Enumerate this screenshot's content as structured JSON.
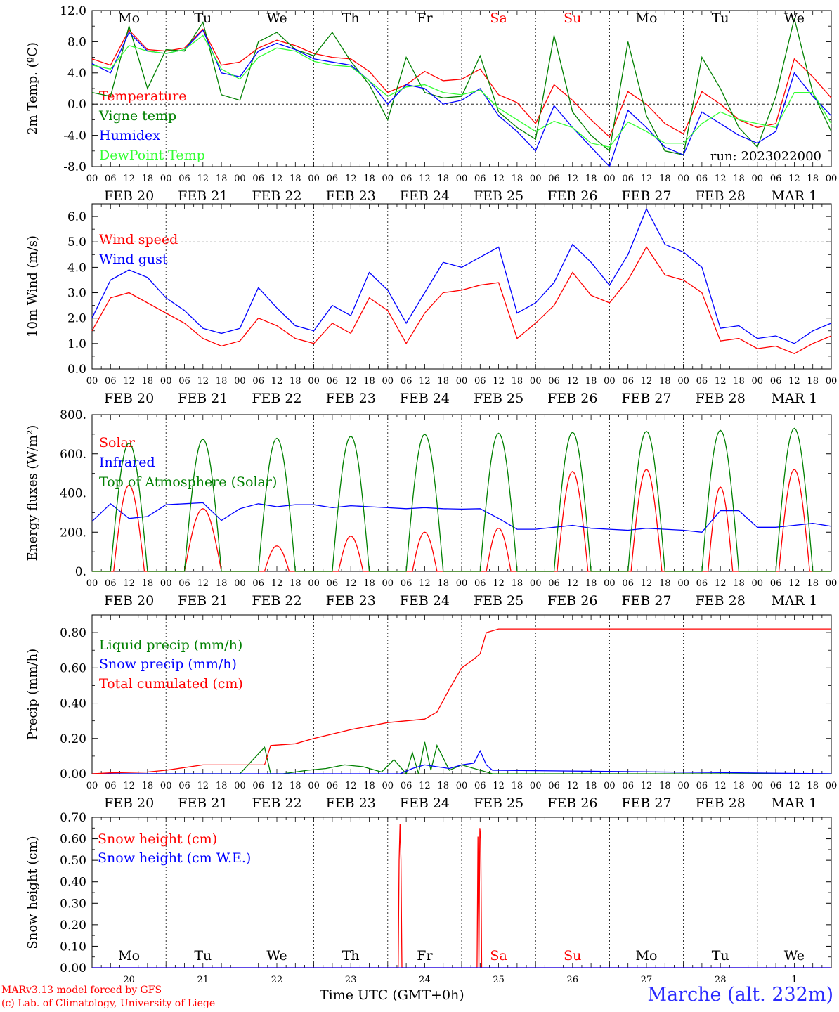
{
  "header": {
    "run_label": "run: 2023022000"
  },
  "footer": {
    "credit_line1": "MARv3.13 model forced by GFS",
    "credit_line2": "(c) Lab. of Climatology, University of Liege",
    "xaxis_title": "Time UTC (GMT+0h)",
    "station": "Marche (alt. 232m)"
  },
  "colors": {
    "red": "#ff0000",
    "green": "#008000",
    "blue": "#0000ff",
    "lightgreen": "#33ff33",
    "text": "#000000",
    "weekend": "#ff0000"
  },
  "days": [
    {
      "date": "FEB 20",
      "dow": "Mo",
      "num": "20",
      "weekend": false
    },
    {
      "date": "FEB 21",
      "dow": "Tu",
      "num": "21",
      "weekend": false
    },
    {
      "date": "FEB 22",
      "dow": "We",
      "num": "22",
      "weekend": false
    },
    {
      "date": "FEB 23",
      "dow": "Th",
      "num": "23",
      "weekend": false
    },
    {
      "date": "FEB 24",
      "dow": "Fr",
      "num": "24",
      "weekend": false
    },
    {
      "date": "FEB 25",
      "dow": "Sa",
      "num": "25",
      "weekend": true
    },
    {
      "date": "FEB 26",
      "dow": "Su",
      "num": "26",
      "weekend": true
    },
    {
      "date": "FEB 27",
      "dow": "Mo",
      "num": "27",
      "weekend": false
    },
    {
      "date": "FEB 28",
      "dow": "Tu",
      "num": "28",
      "weekend": false
    },
    {
      "date": "MAR 1",
      "dow": "We",
      "num": "1",
      "weekend": false
    }
  ],
  "hour_ticks": [
    "00",
    "06",
    "12",
    "18"
  ],
  "chart_data": [
    {
      "type": "line",
      "ylabel": "2m Temp. (ºC)",
      "ylim": [
        -8,
        12
      ],
      "yticks": [
        "-8.0",
        "-4.0",
        "0.0",
        "4.0",
        "8.0",
        "12.0"
      ],
      "ytick_values": [
        -8,
        -4,
        0,
        4,
        8,
        12
      ],
      "x_unit": "hours since FEB 20 00 UTC",
      "ref_line": 0,
      "series": [
        {
          "name": "Temperature",
          "color": "#ff0000",
          "x": [
            0,
            6,
            12,
            18,
            24,
            30,
            36,
            42,
            48,
            54,
            60,
            66,
            72,
            78,
            84,
            90,
            96,
            102,
            108,
            114,
            120,
            126,
            132,
            138,
            144,
            150,
            156,
            162,
            168,
            174,
            180,
            186,
            192,
            198,
            204,
            210,
            216,
            222,
            228,
            234,
            240
          ],
          "y": [
            5.8,
            5.0,
            9.5,
            7.0,
            6.8,
            7.2,
            9.6,
            5.0,
            5.4,
            7.2,
            8.2,
            7.5,
            6.5,
            6.0,
            5.8,
            4.2,
            1.5,
            2.5,
            4.2,
            3.0,
            3.2,
            4.5,
            1.2,
            0.2,
            -2.5,
            2.5,
            0.5,
            -2.0,
            -4.2,
            1.6,
            0.0,
            -2.5,
            -3.8,
            1.6,
            0.0,
            -2.0,
            -3.0,
            -2.5,
            5.8,
            3.5,
            0.8
          ]
        },
        {
          "name": "Vigne temp",
          "color": "#008000",
          "x": [
            0,
            6,
            12,
            18,
            24,
            30,
            36,
            42,
            48,
            54,
            60,
            66,
            72,
            78,
            84,
            90,
            96,
            102,
            108,
            114,
            120,
            126,
            132,
            138,
            144,
            150,
            156,
            162,
            168,
            174,
            180,
            186,
            192,
            198,
            204,
            210,
            216,
            222,
            228,
            234,
            240
          ],
          "y": [
            1.5,
            1.0,
            10.0,
            2.0,
            7.0,
            6.8,
            10.5,
            1.2,
            0.5,
            8.0,
            9.2,
            7.0,
            6.2,
            9.2,
            5.5,
            2.5,
            -2.0,
            6.0,
            1.5,
            0.8,
            1.0,
            6.2,
            -1.0,
            -3.0,
            -4.5,
            8.8,
            -1.0,
            -4.0,
            -6.0,
            8.0,
            -1.5,
            -6.0,
            -6.5,
            6.0,
            2.0,
            -3.0,
            -5.5,
            1.0,
            11.0,
            1.5,
            -3.5
          ]
        },
        {
          "name": "Humidex",
          "color": "#0000ff",
          "x": [
            0,
            6,
            12,
            18,
            24,
            30,
            36,
            42,
            48,
            54,
            60,
            66,
            72,
            78,
            84,
            90,
            96,
            102,
            108,
            114,
            120,
            126,
            132,
            138,
            144,
            150,
            156,
            162,
            168,
            174,
            180,
            186,
            192,
            198,
            204,
            210,
            216,
            222,
            228,
            234,
            240
          ],
          "y": [
            5.2,
            4.0,
            9.2,
            6.8,
            6.5,
            7.0,
            9.5,
            4.0,
            3.5,
            6.8,
            7.8,
            7.0,
            5.8,
            5.4,
            5.0,
            3.0,
            0.0,
            2.5,
            2.0,
            0.0,
            0.5,
            2.0,
            -1.5,
            -3.5,
            -6.0,
            -0.2,
            -3.0,
            -5.5,
            -8.0,
            -0.8,
            -3.0,
            -5.5,
            -6.5,
            -1.0,
            -2.5,
            -4.0,
            -5.0,
            -3.5,
            4.0,
            1.0,
            -1.5
          ]
        },
        {
          "name": "DewPoint Temp",
          "color": "#33ff33",
          "x": [
            0,
            6,
            12,
            18,
            24,
            30,
            36,
            42,
            48,
            54,
            60,
            66,
            72,
            78,
            84,
            90,
            96,
            102,
            108,
            114,
            120,
            126,
            132,
            138,
            144,
            150,
            156,
            162,
            168,
            174,
            180,
            186,
            192,
            198,
            204,
            210,
            216,
            222,
            228,
            234,
            240
          ],
          "y": [
            5.0,
            4.5,
            7.5,
            6.8,
            6.5,
            7.0,
            8.8,
            4.5,
            3.2,
            6.0,
            7.2,
            6.8,
            5.5,
            5.0,
            4.8,
            3.0,
            1.0,
            2.2,
            2.5,
            1.5,
            1.2,
            1.8,
            -0.5,
            -2.0,
            -3.5,
            -2.2,
            -3.0,
            -5.0,
            -5.5,
            -2.3,
            -3.5,
            -5.0,
            -5.0,
            -2.5,
            -1.0,
            -2.0,
            -2.5,
            -3.0,
            1.5,
            1.5,
            -2.5
          ]
        }
      ]
    },
    {
      "type": "line",
      "ylabel": "10m Wind (m/s)",
      "ylim": [
        0,
        6.5
      ],
      "yticks": [
        "0.0",
        "1.0",
        "2.0",
        "3.0",
        "4.0",
        "5.0",
        "6.0"
      ],
      "ytick_values": [
        0,
        1,
        2,
        3,
        4,
        5,
        6
      ],
      "x_unit": "hours since FEB 20 00 UTC",
      "ref_line": 5,
      "series": [
        {
          "name": "Wind speed",
          "color": "#ff0000",
          "x": [
            0,
            6,
            12,
            18,
            24,
            30,
            36,
            42,
            48,
            54,
            60,
            66,
            72,
            78,
            84,
            90,
            96,
            102,
            108,
            114,
            120,
            126,
            132,
            138,
            144,
            150,
            156,
            162,
            168,
            174,
            180,
            186,
            192,
            198,
            204,
            210,
            216,
            222,
            228,
            234,
            240
          ],
          "y": [
            1.5,
            2.8,
            3.0,
            2.6,
            2.2,
            1.8,
            1.2,
            0.9,
            1.1,
            2.0,
            1.7,
            1.2,
            1.0,
            1.8,
            1.4,
            2.8,
            2.3,
            1.0,
            2.2,
            3.0,
            3.1,
            3.3,
            3.4,
            1.2,
            1.8,
            2.5,
            3.8,
            2.9,
            2.6,
            3.5,
            4.8,
            3.7,
            3.5,
            3.0,
            1.1,
            1.2,
            0.8,
            0.9,
            0.6,
            1.0,
            1.3
          ]
        },
        {
          "name": "Wind gust",
          "color": "#0000ff",
          "x": [
            0,
            6,
            12,
            18,
            24,
            30,
            36,
            42,
            48,
            54,
            60,
            66,
            72,
            78,
            84,
            90,
            96,
            102,
            108,
            114,
            120,
            126,
            132,
            138,
            144,
            150,
            156,
            162,
            168,
            174,
            180,
            186,
            192,
            198,
            204,
            210,
            216,
            222,
            228,
            234,
            240
          ],
          "y": [
            2.0,
            3.5,
            3.9,
            3.6,
            2.8,
            2.3,
            1.6,
            1.4,
            1.6,
            3.2,
            2.4,
            1.7,
            1.5,
            2.5,
            2.1,
            3.8,
            3.1,
            1.8,
            3.0,
            4.2,
            4.0,
            4.4,
            4.8,
            2.2,
            2.6,
            3.4,
            4.9,
            4.2,
            3.3,
            4.5,
            6.3,
            4.9,
            4.6,
            4.0,
            1.6,
            1.7,
            1.2,
            1.3,
            1.0,
            1.5,
            1.8
          ]
        }
      ]
    },
    {
      "type": "line",
      "ylabel": "Energy fluxes (W/m²)",
      "ylim": [
        0,
        800
      ],
      "yticks": [
        "0.",
        "200.",
        "400.",
        "600.",
        "800."
      ],
      "ytick_values": [
        0,
        200,
        400,
        600,
        800
      ],
      "x_unit": "hours since FEB 20 00 UTC",
      "series": [
        {
          "name": "Solar",
          "color": "#ff0000",
          "peaks_x": [
            12,
            36,
            60,
            84,
            108,
            132,
            156,
            180,
            204,
            228
          ],
          "peaks_y": [
            440,
            320,
            130,
            180,
            200,
            220,
            510,
            520,
            430,
            520
          ],
          "halfwidth_h": [
            5,
            6,
            4,
            4,
            4,
            4,
            5,
            5,
            4,
            5
          ]
        },
        {
          "name": "Infrared",
          "color": "#0000ff",
          "x": [
            0,
            6,
            12,
            18,
            24,
            30,
            36,
            42,
            48,
            54,
            60,
            66,
            72,
            78,
            84,
            90,
            96,
            102,
            108,
            114,
            120,
            126,
            132,
            138,
            144,
            150,
            156,
            162,
            168,
            174,
            180,
            186,
            192,
            198,
            204,
            210,
            216,
            222,
            228,
            234,
            240
          ],
          "y": [
            255,
            345,
            270,
            280,
            340,
            345,
            350,
            260,
            320,
            345,
            330,
            340,
            340,
            325,
            335,
            330,
            325,
            320,
            325,
            320,
            318,
            320,
            270,
            215,
            215,
            225,
            235,
            220,
            215,
            210,
            220,
            215,
            210,
            200,
            310,
            310,
            225,
            225,
            235,
            245,
            230
          ]
        },
        {
          "name": "Top of Atmosphere (Solar)",
          "color": "#008000",
          "peaks_x": [
            12,
            36,
            60,
            84,
            108,
            132,
            156,
            180,
            204,
            228
          ],
          "peaks_y": [
            655,
            675,
            680,
            690,
            700,
            705,
            710,
            715,
            720,
            730
          ],
          "halfwidth_h": [
            6,
            6,
            6,
            6,
            6,
            6,
            6,
            6,
            6,
            6
          ]
        }
      ]
    },
    {
      "type": "line",
      "ylabel": "Precip (mm/h)",
      "ylim": [
        0,
        0.9
      ],
      "yticks": [
        "0.00",
        "0.20",
        "0.40",
        "0.60",
        "0.80"
      ],
      "ytick_values": [
        0,
        0.2,
        0.4,
        0.6,
        0.8
      ],
      "x_unit": "hours since FEB 20 00 UTC",
      "series": [
        {
          "name": "Liquid precip (mm/h)",
          "color": "#008000",
          "x": [
            0,
            24,
            48,
            56,
            58,
            60,
            62,
            70,
            76,
            82,
            88,
            94,
            98,
            102,
            104,
            106,
            108,
            110,
            112,
            116,
            120,
            130,
            240
          ],
          "y": [
            0,
            0,
            0,
            0.15,
            0.0,
            0,
            0,
            0.02,
            0.03,
            0.05,
            0.04,
            0.01,
            0.08,
            0.0,
            0.12,
            0.0,
            0.18,
            0.02,
            0.16,
            0.02,
            0.05,
            0,
            0
          ]
        },
        {
          "name": "Snow precip (mm/h)",
          "color": "#0000ff",
          "x": [
            0,
            100,
            104,
            108,
            112,
            116,
            120,
            124,
            126,
            128,
            130,
            240
          ],
          "y": [
            0,
            0,
            0.03,
            0.05,
            0.04,
            0.03,
            0.05,
            0.06,
            0.13,
            0.05,
            0.02,
            0
          ]
        },
        {
          "name": "Total cumulated (cm)",
          "color": "#ff0000",
          "x": [
            0,
            6,
            18,
            24,
            36,
            48,
            56,
            58,
            66,
            72,
            84,
            96,
            108,
            112,
            116,
            120,
            124,
            126,
            128,
            132,
            240
          ],
          "y": [
            0.0,
            0.005,
            0.01,
            0.02,
            0.05,
            0.05,
            0.05,
            0.16,
            0.17,
            0.2,
            0.25,
            0.29,
            0.31,
            0.35,
            0.48,
            0.6,
            0.65,
            0.68,
            0.8,
            0.82,
            0.82
          ]
        }
      ]
    },
    {
      "type": "line",
      "ylabel": "Snow height (cm)",
      "ylim": [
        0,
        0.7
      ],
      "yticks": [
        "0.00",
        "0.10",
        "0.20",
        "0.30",
        "0.40",
        "0.50",
        "0.60",
        "0.70"
      ],
      "ytick_values": [
        0,
        0.1,
        0.2,
        0.3,
        0.4,
        0.5,
        0.6,
        0.7
      ],
      "x_unit": "hours since FEB 20 00 UTC",
      "series": [
        {
          "name": "Snow height (cm)",
          "color": "#ff0000",
          "x": [
            0,
            99.4,
            99.7,
            100.0,
            100.3,
            100.6,
            125.0,
            125.3,
            125.6,
            125.9,
            126.2,
            126.5,
            240
          ],
          "y": [
            0,
            0,
            0.5,
            0.67,
            0.5,
            0,
            0,
            0.61,
            0.0,
            0.65,
            0.6,
            0,
            0
          ]
        },
        {
          "name": "Snow height (cm W.E.)",
          "color": "#0000ff",
          "x": [
            0,
            240
          ],
          "y": [
            0,
            0
          ]
        }
      ]
    }
  ]
}
